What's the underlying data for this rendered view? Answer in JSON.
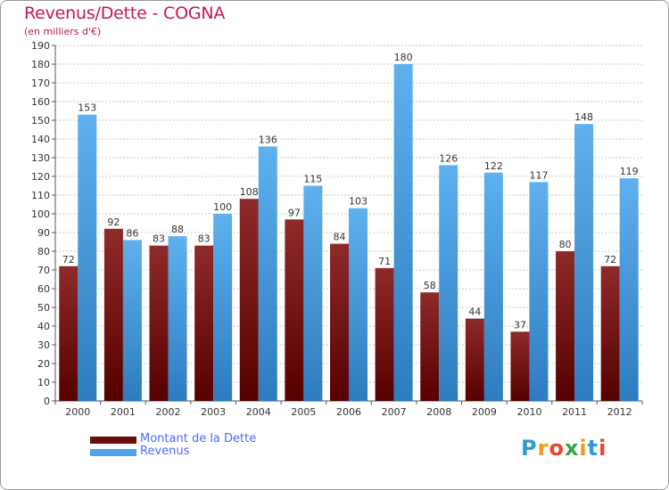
{
  "header": {
    "title": "Revenus/Dette - COGNA",
    "subtitle": "(en milliers d'€)"
  },
  "colors": {
    "dette": "#8b1a1a",
    "dette_dark": "#4a0505",
    "revenus": "#5aabea",
    "revenus_dark": "#2f7fc5",
    "title": "#c2185b",
    "legend_text": "#4a6cff"
  },
  "legend": {
    "items": [
      {
        "label": "Montant de la Dette",
        "color": "#7a1010"
      },
      {
        "label": "Revenus",
        "color": "#4fa3e6"
      }
    ]
  },
  "logo": {
    "text": "Proxiti",
    "colors": [
      "#2e9bd6",
      "#f39a1c",
      "#e8462a",
      "#3aa14a",
      "#f39a1c",
      "#2e9bd6",
      "#e8462a"
    ]
  },
  "chart_data": {
    "type": "bar",
    "title": "Revenus/Dette - COGNA",
    "subtitle": "(en milliers d'€)",
    "categories": [
      "2000",
      "2001",
      "2002",
      "2003",
      "2004",
      "2005",
      "2006",
      "2007",
      "2008",
      "2009",
      "2010",
      "2011",
      "2012"
    ],
    "series": [
      {
        "name": "Montant de la Dette",
        "values": [
          72,
          92,
          83,
          83,
          108,
          97,
          84,
          71,
          58,
          44,
          37,
          80,
          72
        ]
      },
      {
        "name": "Revenus",
        "values": [
          153,
          86,
          88,
          100,
          136,
          115,
          103,
          180,
          126,
          122,
          117,
          148,
          119
        ]
      }
    ],
    "ylim": [
      0,
      190
    ],
    "yticks": [
      0,
      10,
      20,
      30,
      40,
      50,
      60,
      70,
      80,
      90,
      100,
      110,
      120,
      130,
      140,
      150,
      160,
      170,
      180,
      190
    ],
    "grid": true,
    "legend_position": "bottom-left"
  }
}
